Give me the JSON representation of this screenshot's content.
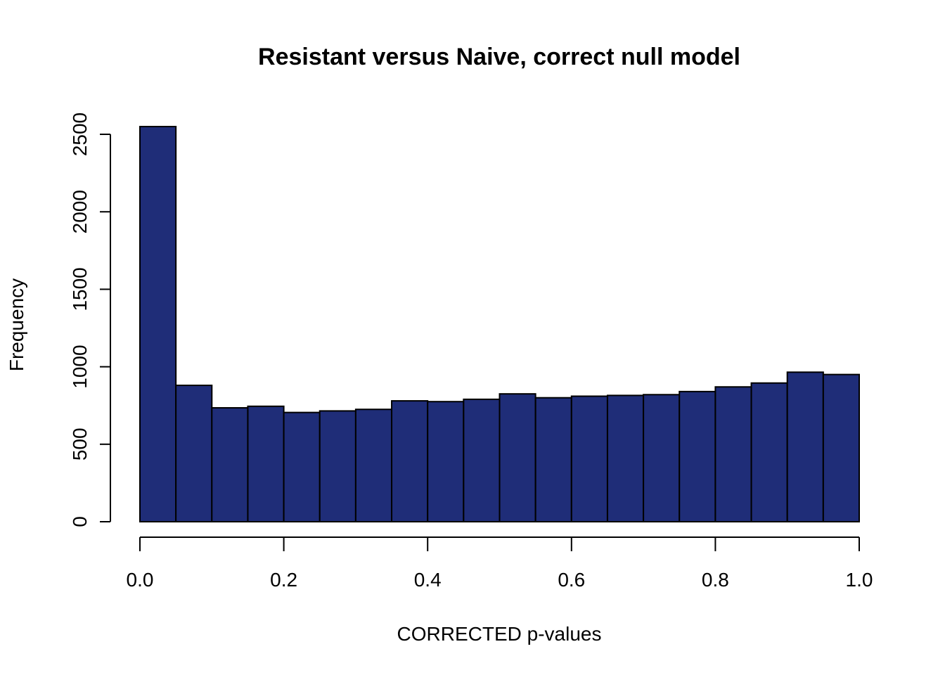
{
  "chart_data": {
    "type": "bar",
    "title": "Resistant versus Naive, correct null model",
    "xlabel": "CORRECTED p-values",
    "ylabel": "Frequency",
    "bar_color": "#1f2d78",
    "bin_edges": [
      0.0,
      0.05,
      0.1,
      0.15,
      0.2,
      0.25,
      0.3,
      0.35,
      0.4,
      0.45,
      0.5,
      0.55,
      0.6,
      0.65,
      0.7,
      0.75,
      0.8,
      0.85,
      0.9,
      0.95,
      1.0
    ],
    "values": [
      2550,
      880,
      735,
      745,
      705,
      715,
      725,
      780,
      775,
      790,
      825,
      800,
      810,
      815,
      820,
      840,
      870,
      895,
      965,
      950
    ],
    "xlim": [
      0,
      1
    ],
    "ylim": [
      0,
      2550
    ],
    "x_ticks": [
      0.0,
      0.2,
      0.4,
      0.6,
      0.8,
      1.0
    ],
    "x_tick_labels": [
      "0.0",
      "0.2",
      "0.4",
      "0.6",
      "0.8",
      "1.0"
    ],
    "y_ticks": [
      0,
      500,
      1000,
      1500,
      2000,
      2500
    ],
    "y_tick_labels": [
      "0",
      "500",
      "1000",
      "1500",
      "2000",
      "2500"
    ],
    "grid": false,
    "legend": "none"
  }
}
